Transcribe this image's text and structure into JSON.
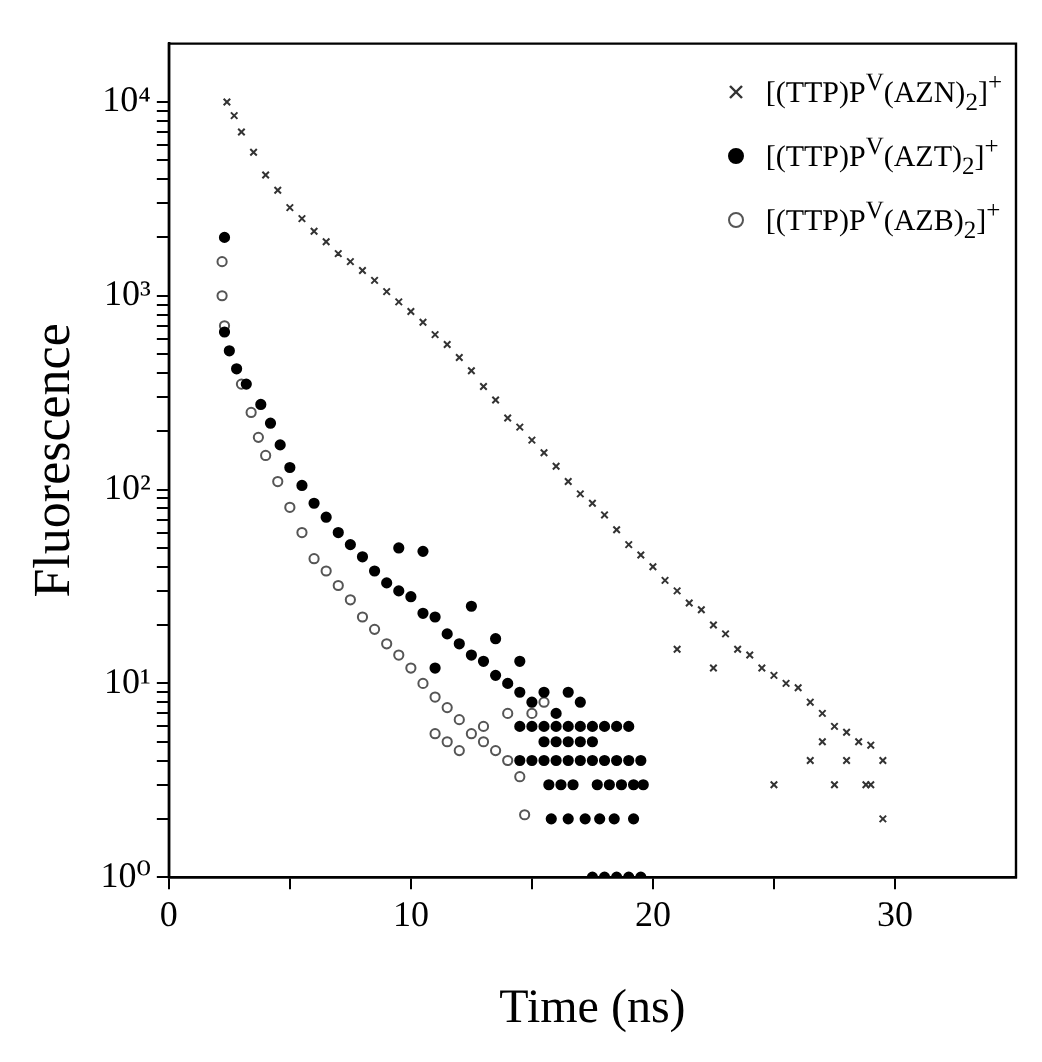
{
  "chart_data": {
    "type": "scatter",
    "xlabel": "Time (ns)",
    "ylabel": "Fluorescence",
    "log": "y",
    "xlim": [
      0,
      35
    ],
    "ylim": [
      1,
      20000
    ],
    "xticks": [
      0,
      {
        "value": 5,
        "label": null
      },
      10,
      {
        "value": 15,
        "label": null
      },
      20,
      {
        "value": 25,
        "label": null
      },
      30
    ],
    "yticks": [
      {
        "value": 1,
        "label": "10⁰"
      },
      {
        "value": 2,
        "label": null
      },
      {
        "value": 3,
        "label": null
      },
      {
        "value": 4,
        "label": null
      },
      {
        "value": 5,
        "label": null
      },
      {
        "value": 6,
        "label": null
      },
      {
        "value": 7,
        "label": null
      },
      {
        "value": 8,
        "label": null
      },
      {
        "value": 9,
        "label": null
      },
      {
        "value": 10,
        "label": "10¹"
      },
      {
        "value": 20,
        "label": null
      },
      {
        "value": 30,
        "label": null
      },
      {
        "value": 40,
        "label": null
      },
      {
        "value": 50,
        "label": null
      },
      {
        "value": 60,
        "label": null
      },
      {
        "value": 70,
        "label": null
      },
      {
        "value": 80,
        "label": null
      },
      {
        "value": 90,
        "label": null
      },
      {
        "value": 100,
        "label": "10²"
      },
      {
        "value": 200,
        "label": null
      },
      {
        "value": 300,
        "label": null
      },
      {
        "value": 400,
        "label": null
      },
      {
        "value": 500,
        "label": null
      },
      {
        "value": 600,
        "label": null
      },
      {
        "value": 700,
        "label": null
      },
      {
        "value": 800,
        "label": null
      },
      {
        "value": 900,
        "label": null
      },
      {
        "value": 1000,
        "label": "10³"
      },
      {
        "value": 2000,
        "label": null
      },
      {
        "value": 3000,
        "label": null
      },
      {
        "value": 4000,
        "label": null
      },
      {
        "value": 5000,
        "label": null
      },
      {
        "value": 6000,
        "label": null
      },
      {
        "value": 7000,
        "label": null
      },
      {
        "value": 8000,
        "label": null
      },
      {
        "value": 9000,
        "label": null
      },
      {
        "value": 10000,
        "label": "10⁴"
      }
    ],
    "grid": false,
    "legend": "top right",
    "series": [
      {
        "name": "[(TTP)P$^{V}$(AZN)$_{2}$]$^{+}$",
        "color": "#333333",
        "marker": "cross",
        "x": [
          2.4,
          2.7,
          3,
          3.5,
          4,
          4.5,
          5,
          5.5,
          6,
          6.5,
          7,
          7.5,
          8,
          8.5,
          9,
          9.5,
          10,
          10.5,
          11,
          11.5,
          12,
          12.5,
          13,
          13.5,
          14,
          14.5,
          15,
          15.5,
          16,
          16.5,
          17,
          17.5,
          18,
          18.5,
          19,
          19.5,
          20,
          20.5,
          21,
          21.5,
          22,
          22.5,
          23,
          23.5,
          24,
          24.5,
          25,
          25.5,
          26,
          26.5,
          27,
          27.5,
          28,
          28.5,
          29,
          29.5,
          21,
          22.5,
          25,
          26.5,
          27.5,
          28.8,
          29.5,
          27,
          28,
          29
        ],
        "values": [
          10000,
          8500,
          7000,
          5500,
          4200,
          3500,
          2850,
          2500,
          2150,
          1900,
          1650,
          1500,
          1350,
          1200,
          1050,
          930,
          830,
          730,
          630,
          560,
          480,
          410,
          340,
          290,
          234,
          210,
          180,
          155,
          132,
          110,
          95,
          85,
          74,
          62,
          52,
          46,
          40,
          34,
          30,
          26,
          24,
          20,
          18,
          15,
          14,
          12,
          11,
          10,
          9.5,
          8,
          7,
          6,
          5.6,
          5,
          4.8,
          4,
          15,
          12,
          3,
          4,
          3,
          3,
          2,
          5,
          4,
          3
        ]
      },
      {
        "name": "[(TTP)P$^{V}$(AZT)$_{2}$]$^{+}$",
        "color": "#000000",
        "marker": "circle",
        "x": [
          2.3,
          2.3,
          2.5,
          2.8,
          3.2,
          3.8,
          4.2,
          4.6,
          5,
          5.5,
          6,
          6.5,
          7,
          7.5,
          8,
          8.5,
          9,
          9.5,
          10,
          10.5,
          11,
          11.5,
          12,
          12.5,
          13,
          13.5,
          14,
          14.5,
          9.5,
          10.5,
          12.5,
          13.5,
          14.5,
          11,
          15,
          15.5,
          16,
          16.5,
          17,
          14.5,
          15,
          15.5,
          16,
          16.5,
          17,
          17.5,
          18,
          18.5,
          19,
          15.5,
          16,
          16.5,
          17,
          17.5,
          14.5,
          15,
          15.5,
          16,
          16.5,
          17,
          17.5,
          18,
          18.5,
          19,
          19.5,
          15.7,
          16.2,
          16.7,
          17.7,
          18.2,
          18.7,
          19.2,
          19.6,
          15.8,
          16.5,
          17.2,
          17.8,
          18.4,
          19.2,
          17.5,
          18,
          18.5,
          19,
          19.5
        ],
        "values": [
          2000,
          650,
          520,
          420,
          350,
          275,
          220,
          170,
          130,
          105,
          85,
          72,
          60,
          52,
          45,
          38,
          33,
          30,
          28,
          23,
          22,
          18,
          16,
          14,
          13,
          11,
          10,
          9,
          50,
          48,
          25,
          17,
          13,
          12,
          8,
          9,
          7,
          9,
          8,
          6,
          6,
          6,
          6,
          6,
          6,
          6,
          6,
          6,
          6,
          5,
          5,
          5,
          5,
          5,
          4,
          4,
          4,
          4,
          4,
          4,
          4,
          4,
          4,
          4,
          4,
          3,
          3,
          3,
          3,
          3,
          3,
          3,
          3,
          2,
          2,
          2,
          2,
          2,
          2,
          1,
          1,
          1,
          1,
          1
        ]
      },
      {
        "name": "[(TTP)P$^{V}$(AZB)$_{2}$]$^{+}$",
        "color": "#555555",
        "marker": "circle",
        "x": [
          2.2,
          2.2,
          2.3,
          3,
          3.4,
          3.7,
          4,
          4.5,
          5,
          5.5,
          6,
          6.5,
          7,
          7.5,
          8,
          8.5,
          9,
          9.5,
          10,
          10.5,
          11,
          11.5,
          12,
          12.5,
          13,
          13.5,
          14,
          14.5,
          14.7,
          11,
          11.5,
          12,
          13,
          14,
          15,
          15.5
        ],
        "values": [
          1500,
          1000,
          700,
          350,
          250,
          186,
          150,
          110,
          81,
          60,
          44,
          38,
          32,
          27,
          22,
          19,
          16,
          14,
          12,
          10,
          8.5,
          7.5,
          6.5,
          5.5,
          5,
          4.5,
          4,
          3.3,
          2.1,
          5.5,
          5,
          4.5,
          6,
          7,
          7,
          8
        ]
      }
    ]
  }
}
